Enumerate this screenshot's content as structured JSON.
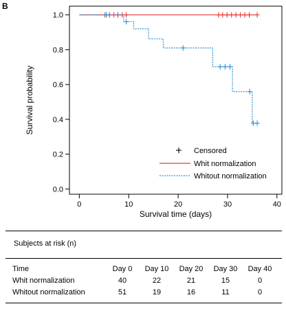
{
  "panel_label": "B",
  "chart_data": {
    "type": "line",
    "step": true,
    "xlabel": "Survival time (days)",
    "ylabel": "Survival probability",
    "xlim": [
      -2,
      41
    ],
    "ylim": [
      -0.03,
      1.05
    ],
    "xticks": [
      0,
      10,
      20,
      30,
      40
    ],
    "yticks": [
      0.0,
      0.2,
      0.4,
      0.6,
      0.8,
      1.0
    ],
    "legend_position": "bottom-right",
    "legend": [
      {
        "label": "Censored",
        "kind": "marker"
      },
      {
        "label": "Whit normalization",
        "kind": "line",
        "color": "#e8393a"
      },
      {
        "label": "Whitout normalization",
        "kind": "dotted",
        "color": "#2a8fd4"
      }
    ],
    "series": [
      {
        "name": "Whit normalization",
        "color": "#e8393a",
        "style": "solid",
        "x": [
          0,
          36
        ],
        "y": [
          1.0,
          1.0
        ],
        "censored_x": [
          5.2,
          6.1,
          7.0,
          7.8,
          8.7,
          9.5,
          28.2,
          29.0,
          29.9,
          30.8,
          31.7,
          32.6,
          33.5,
          34.4,
          36.0
        ]
      },
      {
        "name": "Whitout normalization",
        "color": "#2a8fd4",
        "style": "dotted",
        "x": [
          0,
          9,
          11,
          14,
          17,
          27,
          31,
          35,
          36
        ],
        "y": [
          1.0,
          0.961,
          0.92,
          0.862,
          0.81,
          0.702,
          0.559,
          0.378,
          0.378
        ],
        "censored_x": [
          5.5,
          9.5,
          21.0,
          28.5,
          29.5,
          30.5,
          34.5,
          35.2,
          36.0
        ],
        "censored_y": [
          1.0,
          0.961,
          0.81,
          0.702,
          0.702,
          0.702,
          0.559,
          0.378,
          0.378
        ]
      }
    ]
  },
  "risk_table": {
    "title": "Subjects at risk (n)",
    "header_label": "Time",
    "columns": [
      "Day 0",
      "Day 10",
      "Day 20",
      "Day 30",
      "Day 40"
    ],
    "rows": [
      {
        "label": "Whit normalization",
        "values": [
          "40",
          "22",
          "21",
          "15",
          "0"
        ]
      },
      {
        "label": "Whitout normalization",
        "values": [
          "51",
          "19",
          "16",
          "11",
          "0"
        ]
      }
    ]
  }
}
